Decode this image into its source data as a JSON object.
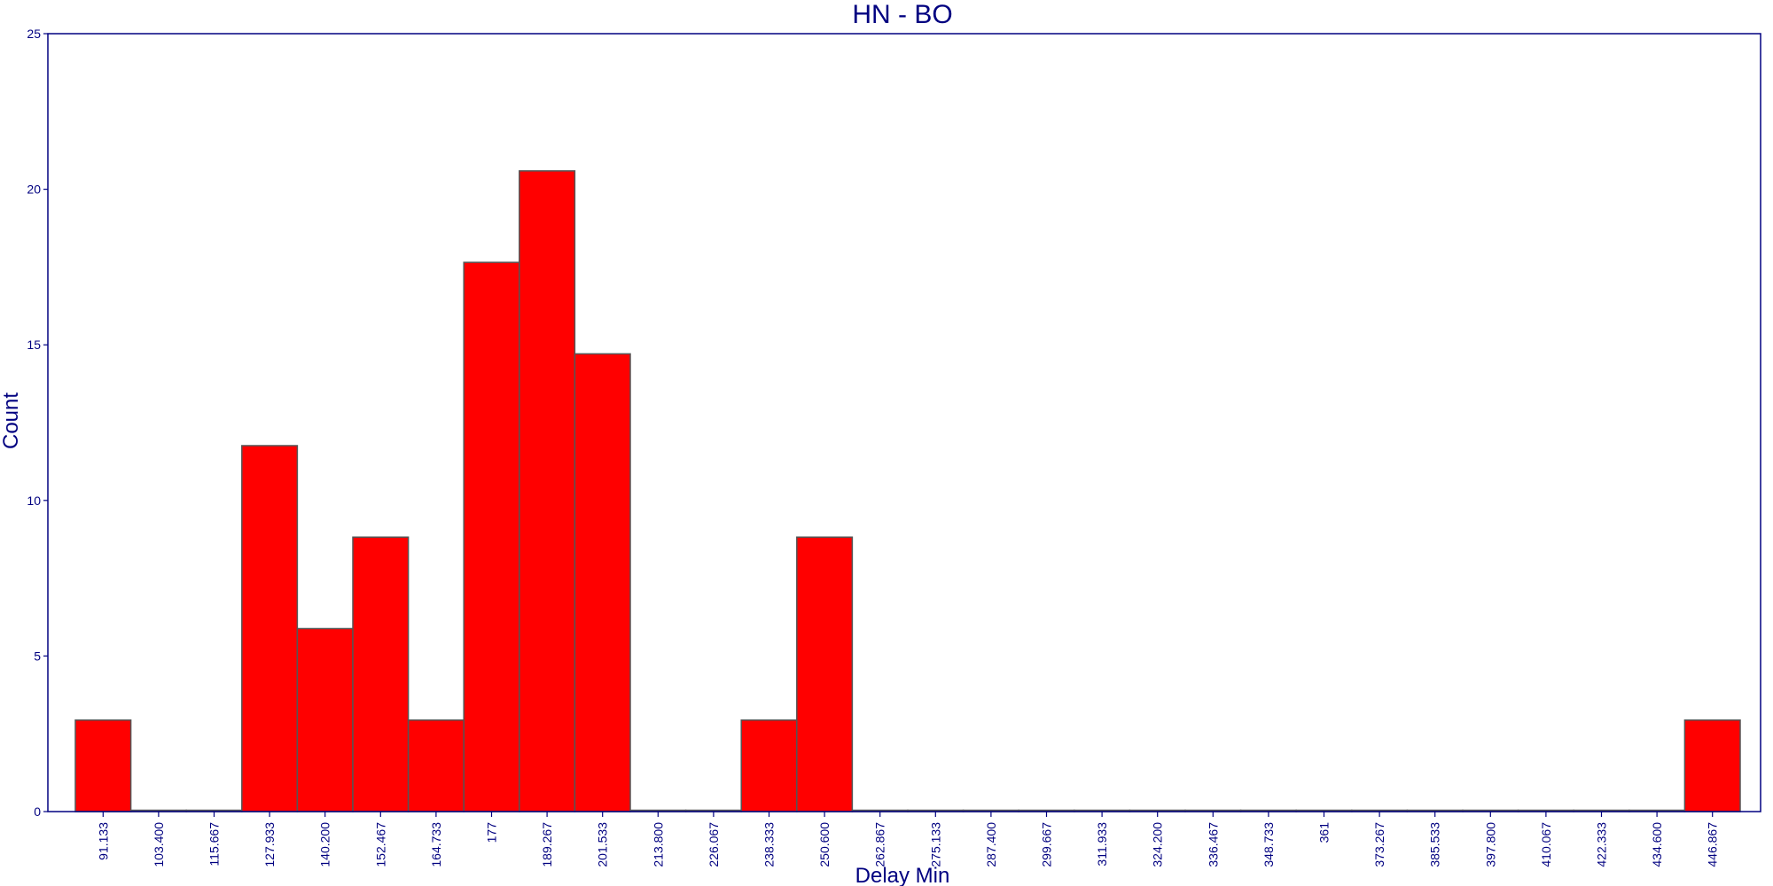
{
  "chart_data": {
    "type": "bar",
    "title": "HN - BO",
    "xlabel": "Delay Min",
    "ylabel": "Count",
    "ylim": [
      0,
      25
    ],
    "yticks": [
      0,
      5,
      10,
      15,
      20,
      25
    ],
    "grid": false,
    "categories": [
      "91.133",
      "103.400",
      "115.667",
      "127.933",
      "140.200",
      "152.467",
      "164.733",
      "177",
      "189.267",
      "201.533",
      "213.800",
      "226.067",
      "238.333",
      "250.600",
      "262.867",
      "275.133",
      "287.400",
      "299.667",
      "311.933",
      "324.200",
      "336.467",
      "348.733",
      "361",
      "373.267",
      "385.533",
      "397.800",
      "410.067",
      "422.333",
      "434.600",
      "446.867"
    ],
    "values": [
      2.94,
      0,
      0,
      11.76,
      5.88,
      8.82,
      2.94,
      17.65,
      20.59,
      14.71,
      0,
      0,
      2.94,
      8.82,
      0,
      0,
      0,
      0,
      0,
      0,
      0,
      0,
      0,
      0,
      0,
      0,
      0,
      0,
      0,
      2.94
    ],
    "colors": {
      "bar": "#ff0000",
      "text": "#000080",
      "frame": "#000080"
    }
  }
}
